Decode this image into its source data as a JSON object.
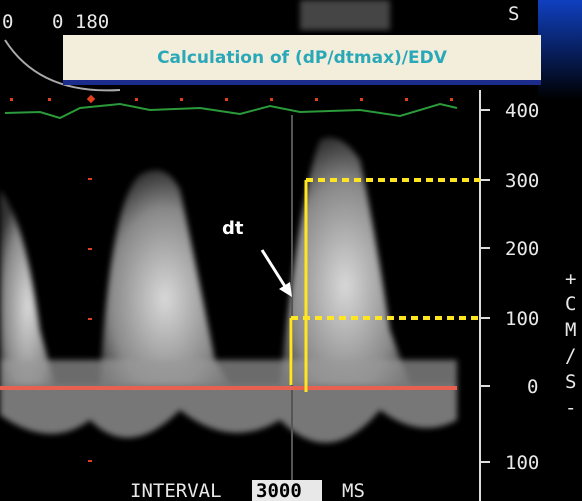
{
  "top_left": {
    "depth": "0",
    "angle": "0 180"
  },
  "top_right": {
    "label": "S"
  },
  "banner": {
    "title": "Calculation of (dP/dtmax)/EDV"
  },
  "annotation": {
    "label": "dt"
  },
  "scale": {
    "labels": [
      "400",
      "300",
      "200",
      "100",
      "0",
      "100"
    ],
    "unit": [
      "+",
      "C",
      "M",
      "/",
      "S",
      "-"
    ]
  },
  "footer": {
    "label": "INTERVAL",
    "value": "3000",
    "unit": "MS"
  }
}
